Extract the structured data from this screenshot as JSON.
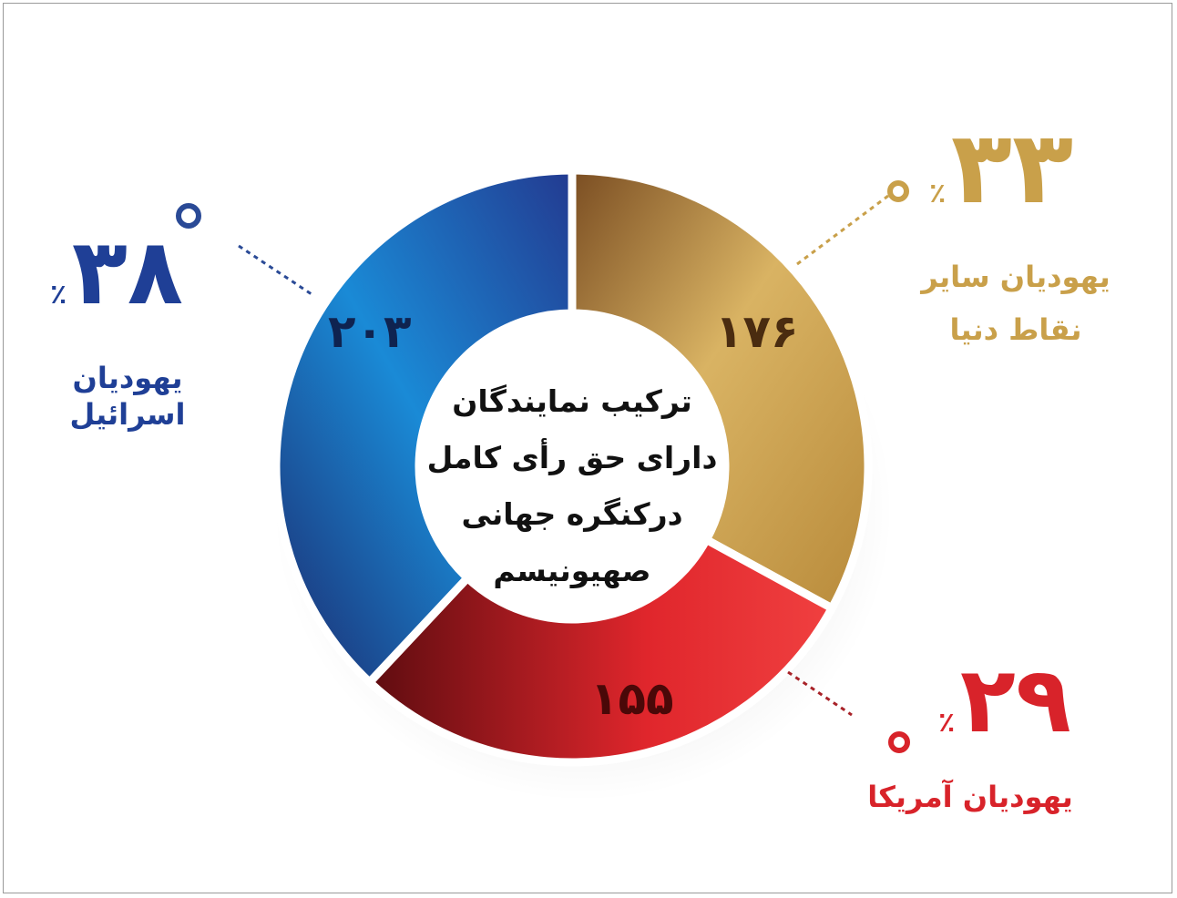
{
  "chart_data": {
    "type": "pie",
    "donut": true,
    "title": "ترکیب نمایندگان دارای حق رأی کامل درکنگره جهانی صهیونیسم",
    "slices": [
      {
        "label": "یهودیان سایر نقاط دنیا",
        "value": 176,
        "value_text": "۱۷۶",
        "percent": 33,
        "percent_text": "۳۳",
        "color": "#c9a04a"
      },
      {
        "label": "یهودیان آمریکا",
        "value": 155,
        "value_text": "۱۵۵",
        "percent": 29,
        "percent_text": "۲۹",
        "color": "#d8232a"
      },
      {
        "label": "یهودیان اسرائیل",
        "value": 203,
        "value_text": "۲۰۳",
        "percent": 38,
        "percent_text": "۳۸",
        "color": "#1f4fa0"
      }
    ],
    "percent_sign": "٪"
  }
}
